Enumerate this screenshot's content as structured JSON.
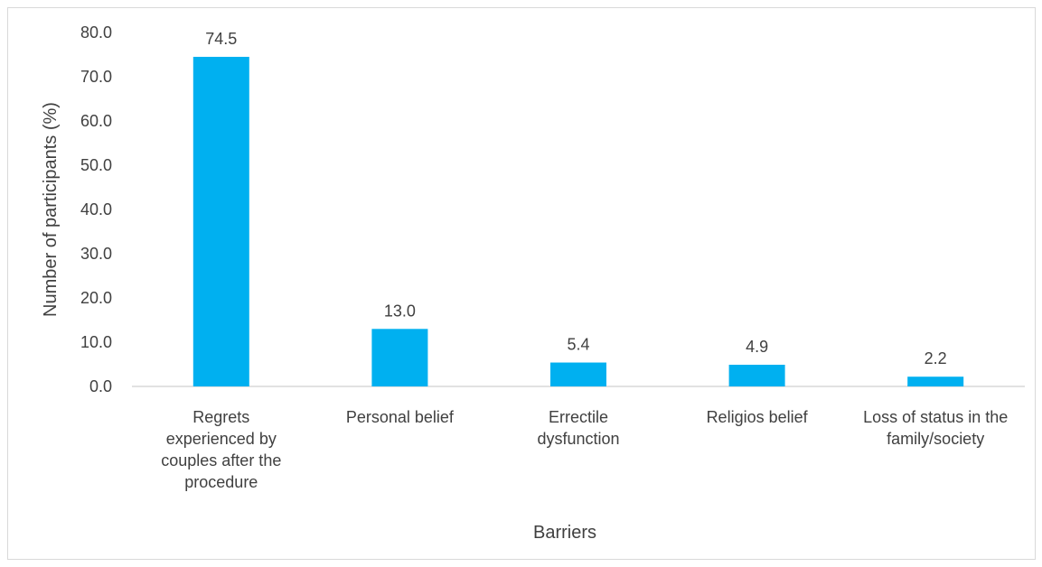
{
  "chart_data": {
    "type": "bar",
    "title": "",
    "xlabel": "Barriers",
    "ylabel": "Number of participants (%)",
    "categories": [
      "Regrets experienced by couples after the procedure",
      "Personal belief",
      "Errectile dysfunction",
      "Religios belief",
      "Loss of status in the family/society"
    ],
    "category_lines": [
      [
        "Regrets",
        "experienced by",
        "couples after the",
        "procedure"
      ],
      [
        "Personal belief"
      ],
      [
        "Errectile",
        "dysfunction"
      ],
      [
        "Religios belief"
      ],
      [
        "Loss of status in the",
        "family/society"
      ]
    ],
    "values": [
      74.5,
      13.0,
      5.4,
      4.9,
      2.2
    ],
    "data_labels": [
      "74.5",
      "13.0",
      "5.4",
      "4.9",
      "2.2"
    ],
    "ylim": [
      0,
      80
    ],
    "yticks": [
      "0.0",
      "10.0",
      "20.0",
      "30.0",
      "40.0",
      "50.0",
      "60.0",
      "70.0",
      "80.0"
    ],
    "grid": false,
    "legend": "none",
    "bar_color": "#00b0f0"
  }
}
